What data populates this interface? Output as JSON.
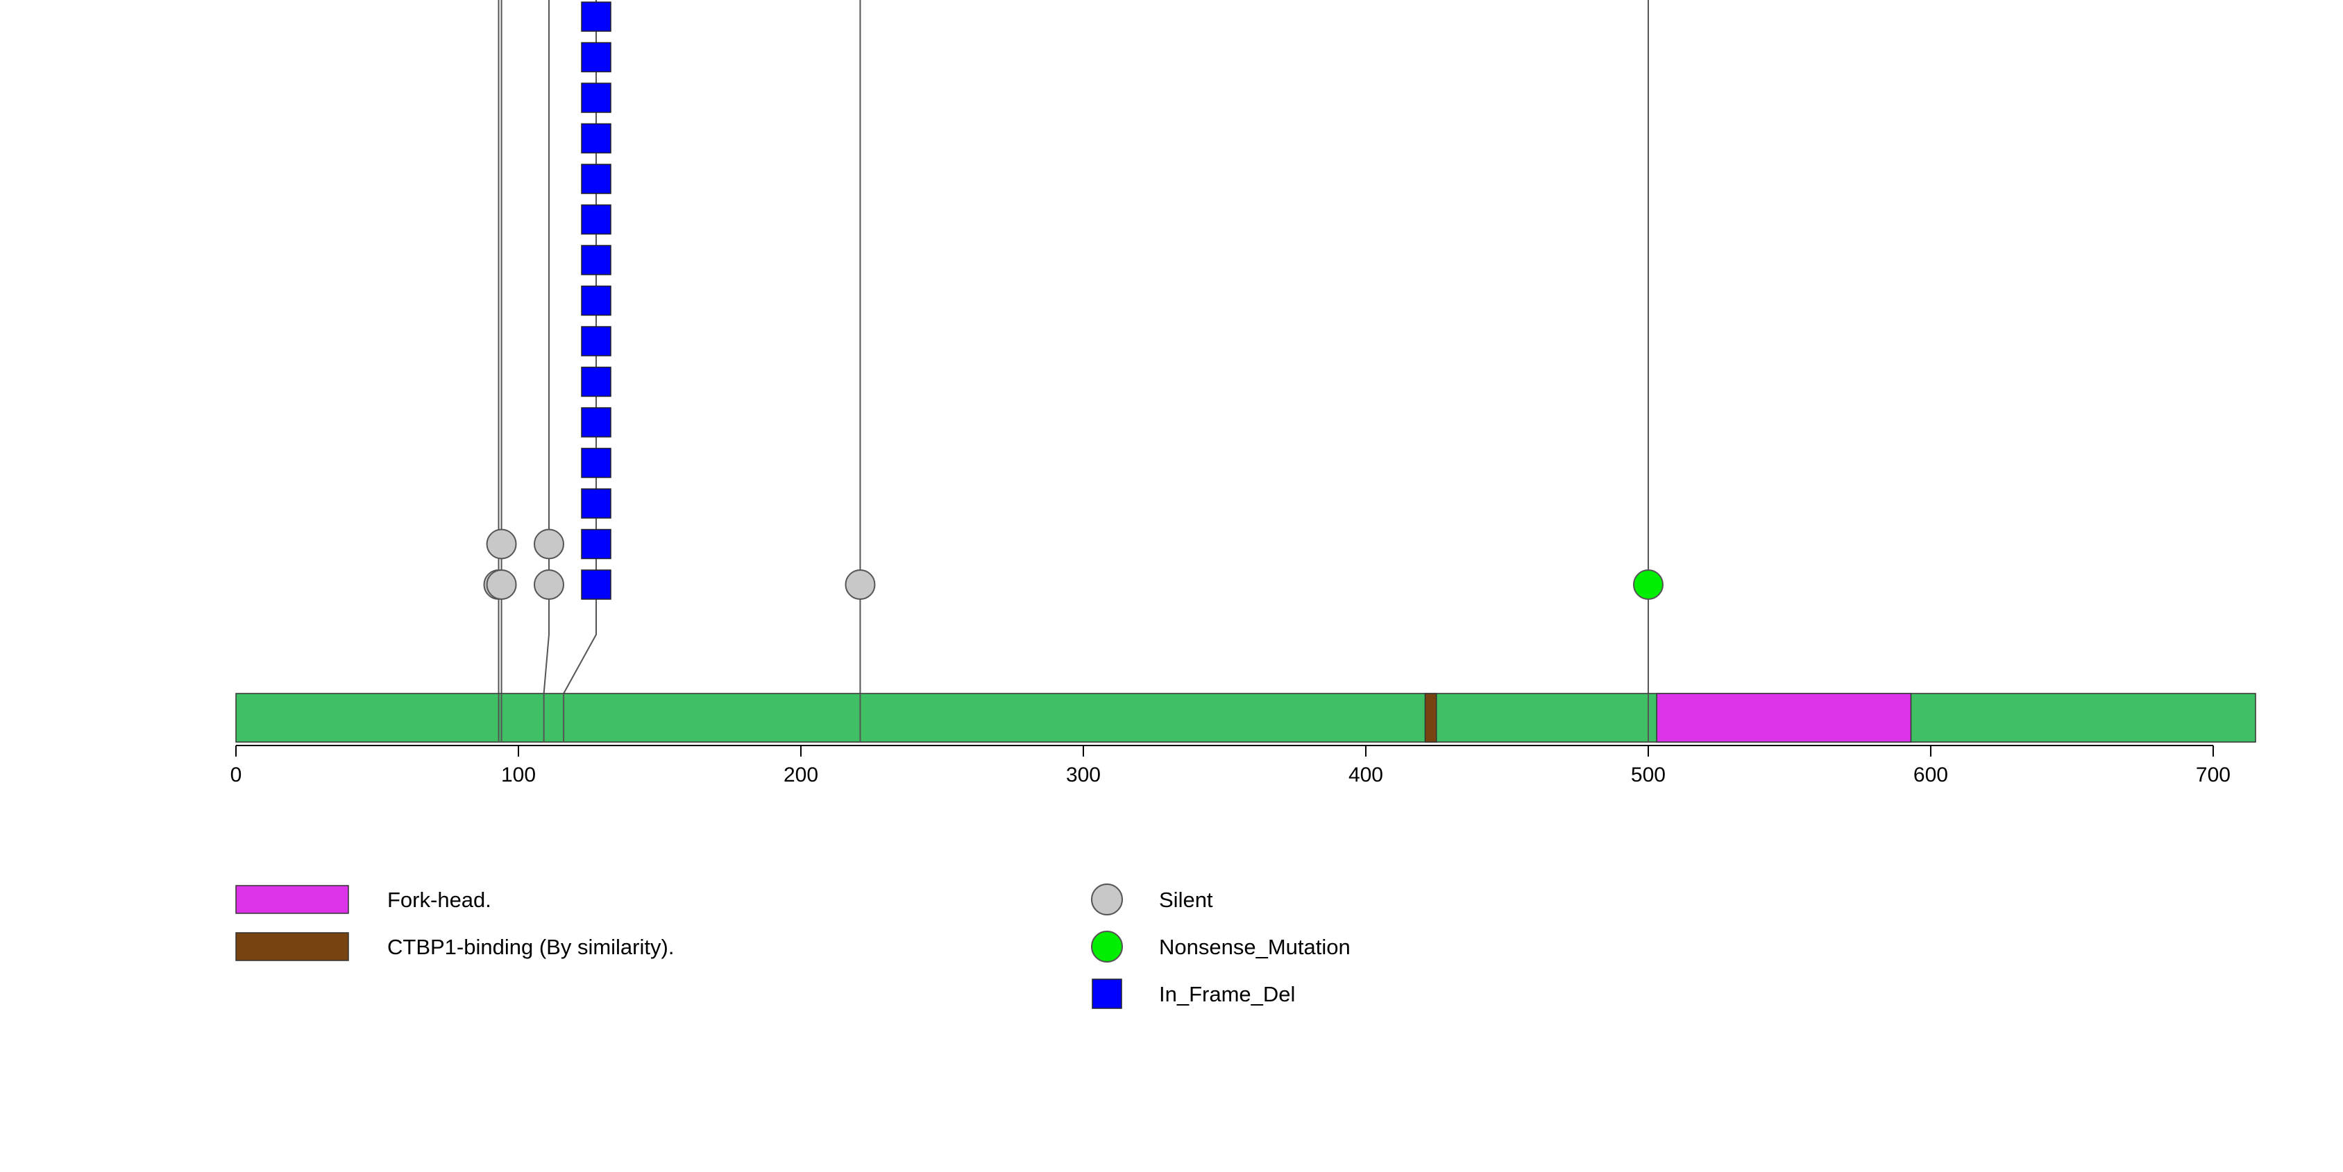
{
  "chart_data": {
    "type": "lollipop",
    "title": "",
    "protein_length": 715,
    "xlim": [
      0,
      715
    ],
    "x_ticks": [
      0,
      100,
      200,
      300,
      400,
      500,
      600,
      700
    ],
    "backbone_color": "#3fc064",
    "domains": [
      {
        "name": "CTBP1-binding (By similarity).",
        "start": 421,
        "end": 425,
        "color": "#774411"
      },
      {
        "name": "Fork-head.",
        "start": 503,
        "end": 593,
        "color": "#dc33e8"
      }
    ],
    "mutation_types": [
      {
        "name": "Silent",
        "color": "#c8c8c8",
        "shape": "circle"
      },
      {
        "name": "Nonsense_Mutation",
        "color": "#00ee00",
        "shape": "circle"
      },
      {
        "name": "In_Frame_Del",
        "color": "#0000ff",
        "shape": "square"
      }
    ],
    "mutations": [
      {
        "position": 93,
        "type": "Silent",
        "count": 1,
        "lane": 0
      },
      {
        "position": 94,
        "type": "Silent",
        "count": 2,
        "lane": 1
      },
      {
        "position": 109,
        "type": "Silent",
        "count": 2,
        "lane": 2
      },
      {
        "position": 116,
        "type": "In_Frame_Del",
        "count": 15,
        "lane": 3
      },
      {
        "position": 221,
        "type": "Silent",
        "count": 1,
        "lane": 4
      },
      {
        "position": 500,
        "type": "Nonsense_Mutation",
        "count": 1,
        "lane": 5
      }
    ],
    "legend": {
      "domains": [
        "Fork-head.",
        "CTBP1-binding (By similarity)."
      ],
      "mutations": [
        "Silent",
        "Nonsense_Mutation",
        "In_Frame_Del"
      ]
    }
  }
}
